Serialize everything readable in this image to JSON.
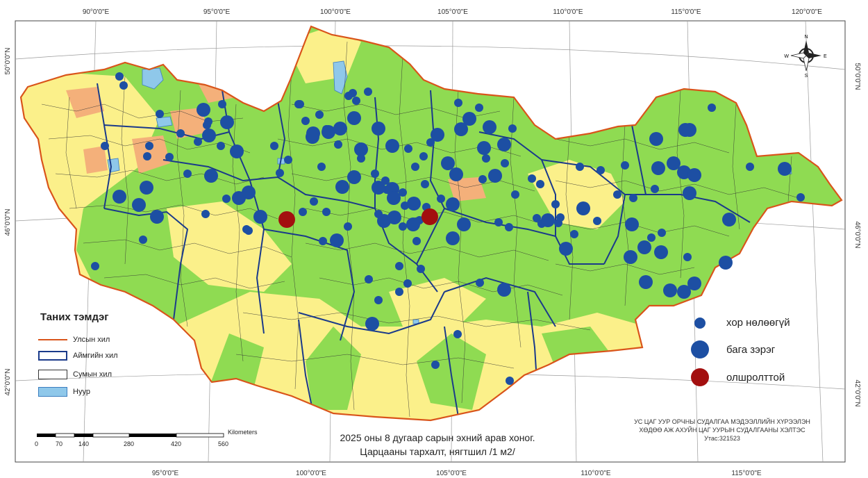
{
  "coords": {
    "top": [
      "90°0'0\"E",
      "95°0'0\"E",
      "100°0'0\"E",
      "105°0'0\"E",
      "110°0'0\"E",
      "115°0'0\"E",
      "120°0'0\"E"
    ],
    "bottom": [
      "95°0'0\"E",
      "100°0'0\"E",
      "105°0'0\"E",
      "110°0'0\"E",
      "115°0'0\"E"
    ],
    "left": [
      "50°0'0\"N",
      "46°0'0\"N",
      "42°0'0\"N"
    ],
    "right": [
      "50°0'0\"N",
      "46°0'0\"N",
      "42°0'0\"N"
    ]
  },
  "north_arrow": {
    "n": "N",
    "s": "S",
    "e": "E",
    "w": "W"
  },
  "legend": {
    "title": "Таних тэмдэг",
    "items": [
      {
        "label": "Улсын хил"
      },
      {
        "label": "Аймгийн хил"
      },
      {
        "label": "Сумын хил"
      },
      {
        "label": "Нуур"
      }
    ]
  },
  "density_legend": [
    {
      "label": "хор нөлөөгүй",
      "color": "#1d4fa3"
    },
    {
      "label": "бага зэрэг",
      "color": "#1d4fa3"
    },
    {
      "label": "олшролттой",
      "color": "#a30f0f"
    }
  ],
  "scale_bar": {
    "units": "Kilometers",
    "ticks": [
      "0",
      "70",
      "140",
      "280",
      "420",
      "560"
    ]
  },
  "caption": {
    "line1": "2025 оны 8 дугаар сарын эхний арав хоног.",
    "line2": "Царцааны тархалт, нягтшил /1 м2/"
  },
  "institute": {
    "line1": "УС ЦАГ УУР ОРЧНЫ СУДАЛГАА МЭДЭЭЛЛИЙН ХҮРЭЭЛЭН",
    "line2": "ХӨДӨӨ АЖ АХУЙН ЦАГ УУРЫН СУДАЛГААНЫ ХЭЛТЭС",
    "line3": "Утас:321523"
  },
  "colors": {
    "green": "#8fdb52",
    "yellow": "#fbf08a",
    "orange": "#f4b07a",
    "border": "#d9541a",
    "aimag": "#1a3a8a",
    "lake": "#8fc8ea",
    "dot_blue": "#1d4fa3",
    "dot_red": "#a30f0f"
  }
}
